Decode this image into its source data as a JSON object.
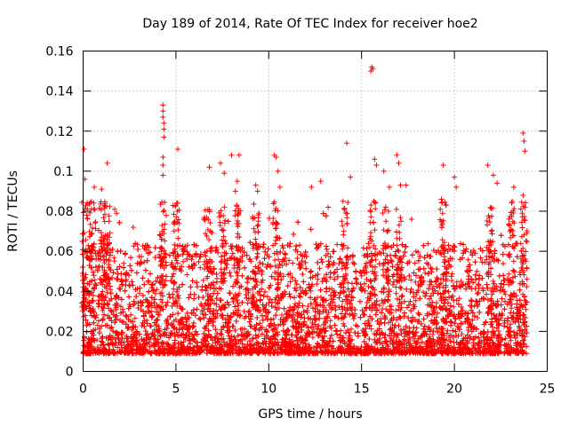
{
  "chart_data": {
    "type": "scatter",
    "title": "Day 189 of 2014, Rate Of TEC Index for receiver hoe2",
    "xlabel": "GPS time / hours",
    "ylabel": "ROTI / TECUs",
    "xlim": [
      0,
      25
    ],
    "ylim": [
      0,
      0.16
    ],
    "xticks": [
      0,
      5,
      10,
      15,
      20,
      25
    ],
    "xtick_labels": [
      "0",
      "5",
      "10",
      "15",
      "20",
      "25"
    ],
    "yticks": [
      0,
      0.02,
      0.04,
      0.06,
      0.08,
      0.1,
      0.12,
      0.14,
      0.16
    ],
    "ytick_labels": [
      "0",
      "0.02",
      "0.04",
      "0.06",
      "0.08",
      "0.1",
      "0.12",
      "0.14",
      "0.16"
    ],
    "grid": true,
    "marker": "plus",
    "series": [
      {
        "name": "ROTI",
        "color": "#ff0000",
        "typical_band": [
          0.005,
          0.06
        ],
        "x_range": [
          0,
          23.9
        ],
        "points": [
          [
            0.05,
            0.111
          ],
          [
            0.1,
            0.096
          ],
          [
            0.15,
            0.083
          ],
          [
            0.2,
            0.078
          ],
          [
            0.6,
            0.092
          ],
          [
            1.0,
            0.091
          ],
          [
            1.3,
            0.104
          ],
          [
            1.7,
            0.081
          ],
          [
            1.8,
            0.079
          ],
          [
            2.7,
            0.072
          ],
          [
            4.3,
            0.133
          ],
          [
            4.3,
            0.13
          ],
          [
            4.3,
            0.127
          ],
          [
            4.35,
            0.124
          ],
          [
            4.35,
            0.121
          ],
          [
            4.35,
            0.117
          ],
          [
            4.3,
            0.107
          ],
          [
            4.3,
            0.103
          ],
          [
            4.3,
            0.098
          ],
          [
            5.1,
            0.111
          ],
          [
            6.5,
            0.076
          ],
          [
            6.8,
            0.102
          ],
          [
            7.4,
            0.104
          ],
          [
            7.6,
            0.099
          ],
          [
            8.0,
            0.108
          ],
          [
            8.2,
            0.09
          ],
          [
            8.3,
            0.095
          ],
          [
            8.4,
            0.108
          ],
          [
            9.3,
            0.093
          ],
          [
            9.4,
            0.09
          ],
          [
            10.3,
            0.108
          ],
          [
            10.4,
            0.107
          ],
          [
            10.5,
            0.1
          ],
          [
            10.6,
            0.092
          ],
          [
            12.3,
            0.092
          ],
          [
            12.8,
            0.095
          ],
          [
            13.2,
            0.082
          ],
          [
            14.0,
            0.085
          ],
          [
            14.2,
            0.114
          ],
          [
            14.4,
            0.097
          ],
          [
            15.55,
            0.152
          ],
          [
            15.6,
            0.151
          ],
          [
            15.5,
            0.15
          ],
          [
            15.7,
            0.106
          ],
          [
            15.8,
            0.103
          ],
          [
            16.2,
            0.1
          ],
          [
            16.5,
            0.092
          ],
          [
            16.9,
            0.108
          ],
          [
            17.0,
            0.104
          ],
          [
            17.1,
            0.093
          ],
          [
            17.4,
            0.093
          ],
          [
            19.4,
            0.103
          ],
          [
            19.3,
            0.086
          ],
          [
            20.0,
            0.097
          ],
          [
            20.1,
            0.092
          ],
          [
            21.8,
            0.103
          ],
          [
            22.1,
            0.098
          ],
          [
            22.3,
            0.094
          ],
          [
            23.2,
            0.092
          ],
          [
            23.7,
            0.119
          ],
          [
            23.75,
            0.115
          ],
          [
            23.8,
            0.11
          ],
          [
            23.7,
            0.088
          ],
          [
            23.8,
            0.082
          ]
        ]
      }
    ]
  }
}
